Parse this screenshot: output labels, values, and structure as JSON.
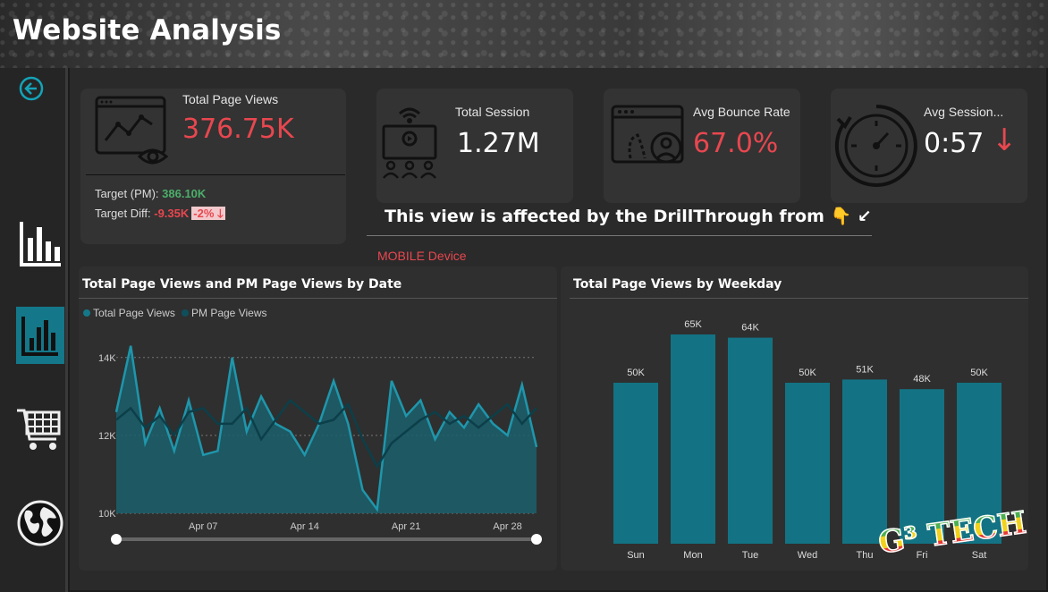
{
  "header": {
    "title": "Website Analysis"
  },
  "nav": [
    {
      "name": "back",
      "icon": "back-arrow-icon"
    },
    {
      "name": "overview",
      "icon": "bar-chart-icon"
    },
    {
      "name": "website",
      "icon": "bar-chart-active-icon",
      "active": true
    },
    {
      "name": "sales",
      "icon": "shopping-cart-icon"
    },
    {
      "name": "global",
      "icon": "globe-icon"
    }
  ],
  "kpis": {
    "page_views": {
      "label": "Total Page Views",
      "value": "376.75K",
      "target_label": "Target (PM):",
      "target_value": "386.10K",
      "diff_label": "Target Diff:",
      "diff_value": "-9.35K",
      "diff_pct": "-2%",
      "diff_arrow": "🡓"
    },
    "session": {
      "label": "Total Session",
      "value": "1.27M"
    },
    "bounce": {
      "label": "Avg Bounce Rate",
      "value": "67.0%"
    },
    "avg_session": {
      "label": "Avg Session...",
      "value": "0:57",
      "arrow": "↓"
    }
  },
  "drill": {
    "note": "This view is affected by the DrillThrough from 👇 ↙",
    "device": "MOBILE Device"
  },
  "colors": {
    "accent": "#14788a",
    "accent_dark": "#0f4f5c",
    "red": "#e8474f",
    "green": "#4cae6a"
  },
  "chart_data": [
    {
      "type": "area",
      "title": "Total Page Views and PM Page Views by Date",
      "legend": [
        "Total Page Views",
        "PM Page Views"
      ],
      "legend_position": "top-left",
      "x_ticks": [
        "Apr 07",
        "Apr 14",
        "Apr 21",
        "Apr 28"
      ],
      "y_ticks": [
        "14K",
        "12K",
        "10K"
      ],
      "ylim": [
        10000,
        14500
      ],
      "grid": true,
      "x": [
        1,
        2,
        3,
        4,
        5,
        6,
        7,
        8,
        9,
        10,
        11,
        12,
        13,
        14,
        15,
        16,
        17,
        18,
        19,
        20,
        21,
        22,
        23,
        24,
        25,
        26,
        27,
        28,
        29,
        30
      ],
      "series": [
        {
          "name": "Total Page Views",
          "values": [
            12600,
            14300,
            11800,
            12700,
            11600,
            12900,
            11500,
            11600,
            14000,
            12100,
            13000,
            12300,
            12100,
            11500,
            12300,
            13400,
            12300,
            10600,
            10100,
            13400,
            12500,
            12900,
            11900,
            12600,
            12200,
            12800,
            12300,
            12000,
            13300,
            11700
          ]
        },
        {
          "name": "PM Page Views",
          "values": [
            12400,
            12700,
            12200,
            12500,
            12000,
            12600,
            12700,
            12300,
            12300,
            12700,
            11900,
            12400,
            12900,
            12600,
            12300,
            12400,
            12800,
            11900,
            11200,
            11800,
            12100,
            12400,
            12600,
            12300,
            12500,
            12200,
            12500,
            12800,
            12300,
            12700
          ]
        }
      ]
    },
    {
      "type": "bar",
      "title": "Total Page Views by Weekday",
      "categories": [
        "Sun",
        "Mon",
        "Tue",
        "Wed",
        "Thu",
        "Fri",
        "Sat"
      ],
      "values": [
        50000,
        65000,
        64000,
        50000,
        51000,
        48000,
        50000
      ],
      "labels": [
        "50K",
        "65K",
        "64K",
        "50K",
        "51K",
        "48K",
        "50K"
      ]
    }
  ],
  "watermark": {
    "text": "G³ TECH"
  }
}
